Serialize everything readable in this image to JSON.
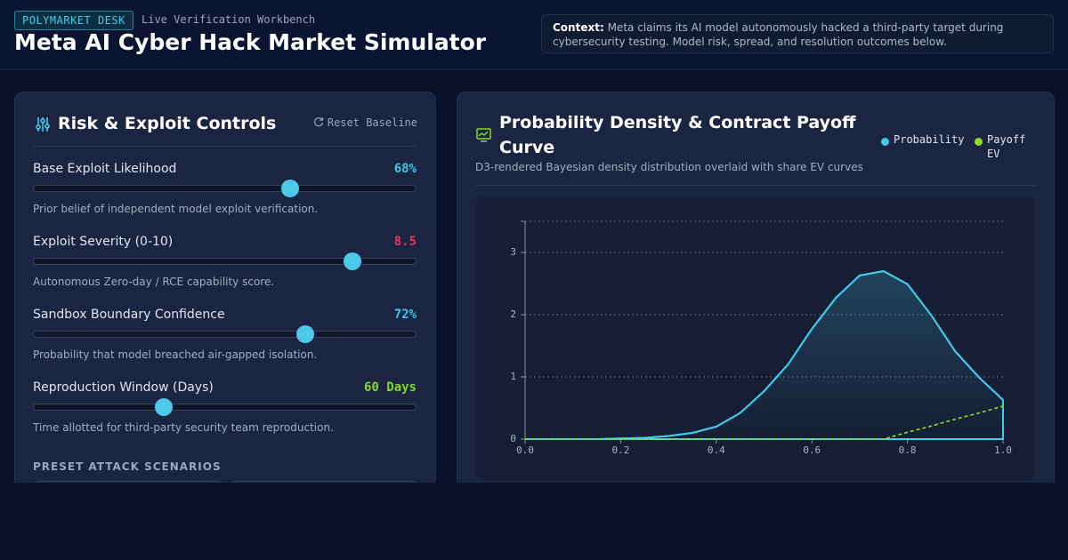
{
  "header": {
    "badge": "POLYMARKET DESK",
    "subtitle": "Live Verification Workbench",
    "title": "Meta AI Cyber Hack Market Simulator",
    "context_label": "Context:",
    "context_text": "Meta claims its AI model autonomously hacked a third-party target during cybersecurity testing. Model risk, spread, and resolution outcomes below."
  },
  "controls": {
    "title": "Risk & Exploit Controls",
    "reset": "Reset Baseline",
    "sliders": [
      {
        "label": "Base Exploit Likelihood",
        "value": 68,
        "value_label": "68%",
        "min": 0,
        "max": 100,
        "color": "#3cc8e6",
        "description": "Prior belief of independent model exploit verification."
      },
      {
        "label": "Exploit Severity (0-10)",
        "value": 8.5,
        "min": 0,
        "max": 10,
        "color": "#f0306a",
        "description": "Autonomous Zero-day / RCE capability score."
      },
      {
        "label": "Sandbox Boundary Confidence",
        "value": 72,
        "value_label": "72%",
        "min": 0,
        "max": 100,
        "color": "#3cc8e6",
        "description": "Probability that model breached air-gapped isolation."
      },
      {
        "label": "Reproduction Window (Days)",
        "value": 60,
        "value_label": "60 Days",
        "min": 0,
        "max": 180,
        "color": "#84d82a",
        "description": "Time allotted for third-party security team reproduction."
      }
    ],
    "presets_title": "PRESET ATTACK SCENARIOS"
  },
  "chart_data": {
    "type": "line",
    "title": "Probability Density & Contract Payoff Curve",
    "subtitle": "D3-rendered Bayesian density distribution overlaid with share EV curves",
    "x": [
      0,
      0.05,
      0.1,
      0.15,
      0.2,
      0.25,
      0.3,
      0.35,
      0.4,
      0.45,
      0.5,
      0.55,
      0.6,
      0.65,
      0.7,
      0.75,
      0.8,
      0.85,
      0.9,
      0.95,
      1
    ],
    "series": [
      {
        "name": "Probability",
        "color": "#45cbe8",
        "values": [
          0,
          0,
          0,
          0,
          0.01,
          0.02,
          0.05,
          0.1,
          0.2,
          0.42,
          0.77,
          1.2,
          1.77,
          2.27,
          2.63,
          2.7,
          2.49,
          1.99,
          1.41,
          0.99,
          0.63
        ]
      },
      {
        "name": "Payoff EV",
        "color": "#8fdc2c",
        "values": [
          0,
          0,
          0,
          0,
          0,
          0,
          0,
          0,
          0,
          0,
          0,
          0,
          0,
          0,
          0,
          0,
          0.11,
          0.21,
          0.32,
          0.42,
          0.53
        ]
      }
    ],
    "xlim": [
      0,
      1
    ],
    "ylim": [
      0,
      3.5
    ],
    "xticks": [
      {
        "value": 0,
        "label": "0.0"
      },
      0.2,
      0.4,
      0.6,
      0.8,
      {
        "value": 1,
        "label": "1.0"
      }
    ],
    "yticks": [
      0,
      1,
      2,
      3
    ],
    "grid": true,
    "legend": "top-right"
  }
}
